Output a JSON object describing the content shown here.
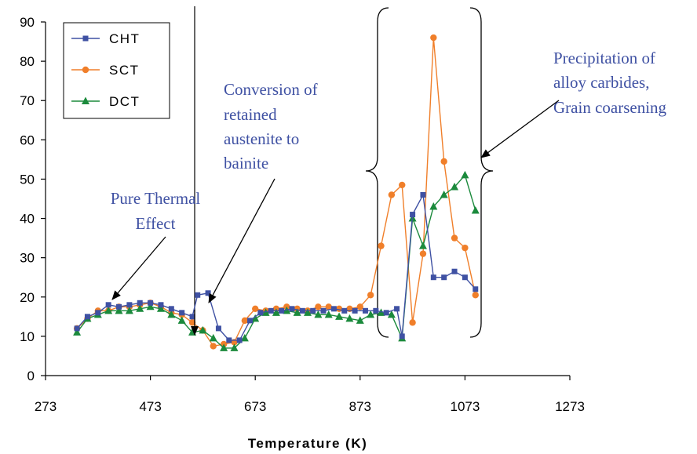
{
  "chart_data": {
    "type": "line",
    "title": "",
    "xlabel": "Temperature (K)",
    "ylabel": "",
    "xlim": [
      273,
      1273
    ],
    "ylim": [
      0,
      90
    ],
    "xticks": [
      "273",
      "473",
      "673",
      "873",
      "1073",
      "1273"
    ],
    "yticks": [
      "0",
      "10",
      "20",
      "30",
      "40",
      "50",
      "60",
      "70",
      "80",
      "90"
    ],
    "grid": false,
    "legend_position": "top-left",
    "series": [
      {
        "name": "CHT",
        "color": "#3f51a3",
        "marker": "square",
        "x": [
          333,
          353,
          373,
          393,
          413,
          433,
          453,
          473,
          493,
          513,
          533,
          553,
          563,
          583,
          603,
          623,
          643,
          663,
          683,
          703,
          723,
          743,
          763,
          783,
          803,
          823,
          843,
          863,
          883,
          903,
          923,
          943,
          953,
          973,
          993,
          1013,
          1033,
          1053,
          1073,
          1093
        ],
        "y": [
          12,
          15,
          16,
          18,
          17.5,
          18,
          18.5,
          18.5,
          18,
          17,
          16,
          15,
          20.5,
          21,
          12,
          9,
          9,
          14,
          16,
          16.5,
          16.5,
          17,
          16.5,
          16.5,
          16.5,
          17,
          16.5,
          16.5,
          16.5,
          16.5,
          16,
          17,
          10,
          41,
          46,
          25,
          25,
          26.5,
          25,
          22
        ]
      },
      {
        "name": "SCT",
        "color": "#f07f2a",
        "marker": "circle",
        "x": [
          333,
          353,
          373,
          393,
          413,
          433,
          453,
          473,
          493,
          513,
          533,
          553,
          573,
          593,
          613,
          633,
          653,
          673,
          693,
          713,
          733,
          753,
          773,
          793,
          813,
          833,
          853,
          873,
          893,
          913,
          933,
          953,
          973,
          993,
          1013,
          1033,
          1053,
          1073,
          1093
        ],
        "y": [
          12,
          14.5,
          16.5,
          16.5,
          17.5,
          17.5,
          18,
          18.5,
          17.5,
          16,
          15.5,
          13.5,
          11.5,
          7.5,
          8,
          8.5,
          14,
          17,
          16.5,
          17,
          17.5,
          17,
          16.5,
          17.5,
          17.5,
          17,
          17,
          17.5,
          20.5,
          33,
          46,
          48.5,
          13.5,
          31,
          86,
          54.5,
          35,
          32.5,
          20.5
        ]
      },
      {
        "name": "DCT",
        "color": "#1b8a3c",
        "marker": "triangle",
        "x": [
          333,
          353,
          373,
          393,
          413,
          433,
          453,
          473,
          493,
          513,
          533,
          553,
          573,
          593,
          613,
          633,
          653,
          673,
          693,
          713,
          733,
          753,
          773,
          793,
          813,
          833,
          853,
          873,
          893,
          913,
          933,
          953,
          973,
          993,
          1013,
          1033,
          1053,
          1073,
          1093
        ],
        "y": [
          11,
          14.5,
          15.5,
          16.5,
          16.5,
          16.5,
          17,
          17.5,
          17,
          15.5,
          14,
          11,
          11.5,
          9.5,
          7,
          7,
          9.5,
          14.5,
          16,
          16,
          16.5,
          16,
          16,
          15.5,
          15.5,
          15,
          14.5,
          14,
          15.5,
          16,
          15.5,
          9.5,
          40,
          33,
          43,
          46,
          48,
          51,
          42
        ]
      }
    ],
    "annotations": {
      "pure_thermal": [
        "Pure Thermal",
        "Effect"
      ],
      "conversion": [
        "Conversion of",
        "retained",
        "austenite to",
        "bainite"
      ],
      "precipitation": [
        "Precipitation of",
        "alloy carbides,",
        "Grain coarsening"
      ]
    }
  }
}
